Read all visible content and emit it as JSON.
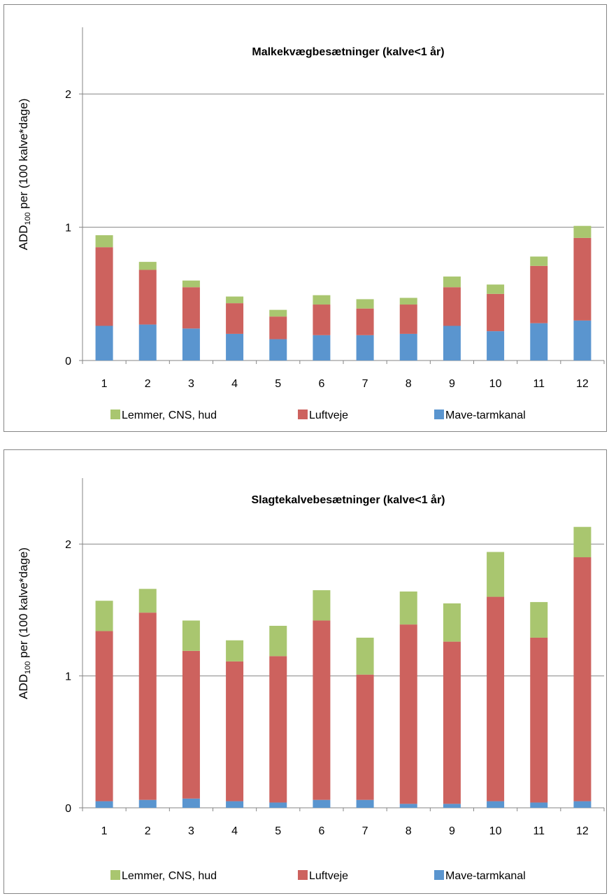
{
  "colors": {
    "limbs": "#a9c66f",
    "respiratory": "#cd625e",
    "digestive": "#5a95cf",
    "axis": "#868686",
    "grid": "#868686"
  },
  "chart_data": [
    {
      "type": "bar",
      "stacked": true,
      "title": "Malkekvægbesætninger (kalve<1 år)",
      "ylabel_main": "ADD",
      "ylabel_sub": "100",
      "ylabel_rest": " per (100 kalve*dage)",
      "xlabel": "",
      "categories": [
        "1",
        "2",
        "3",
        "4",
        "5",
        "6",
        "7",
        "8",
        "9",
        "10",
        "11",
        "12"
      ],
      "ylim": [
        0,
        2.5
      ],
      "yticks": [
        0,
        1,
        2
      ],
      "ytick_labels": [
        "0",
        "1",
        "2"
      ],
      "grid": true,
      "legend_position": "bottom",
      "series": [
        {
          "name": "Mave-tarmkanal",
          "color_key": "digestive",
          "values": [
            0.26,
            0.27,
            0.24,
            0.2,
            0.16,
            0.19,
            0.19,
            0.2,
            0.26,
            0.22,
            0.28,
            0.3
          ]
        },
        {
          "name": "Luftveje",
          "color_key": "respiratory",
          "values": [
            0.59,
            0.41,
            0.31,
            0.23,
            0.17,
            0.23,
            0.2,
            0.22,
            0.29,
            0.28,
            0.43,
            0.62
          ]
        },
        {
          "name": "Lemmer, CNS, hud",
          "color_key": "limbs",
          "values": [
            0.09,
            0.06,
            0.05,
            0.05,
            0.05,
            0.07,
            0.07,
            0.05,
            0.08,
            0.07,
            0.07,
            0.09
          ]
        }
      ],
      "legend_order": [
        "Lemmer, CNS, hud",
        "Luftveje",
        "Mave-tarmkanal"
      ]
    },
    {
      "type": "bar",
      "stacked": true,
      "title": "Slagtekalvebesætninger (kalve<1 år)",
      "ylabel_main": "ADD",
      "ylabel_sub": "100",
      "ylabel_rest": " per (100 kalve*dage)",
      "xlabel": "",
      "categories": [
        "1",
        "2",
        "3",
        "4",
        "5",
        "6",
        "7",
        "8",
        "9",
        "10",
        "11",
        "12"
      ],
      "ylim": [
        0,
        2.5
      ],
      "yticks": [
        0,
        1,
        2
      ],
      "ytick_labels": [
        "0",
        "1",
        "2"
      ],
      "grid": true,
      "legend_position": "bottom",
      "series": [
        {
          "name": "Mave-tarmkanal",
          "color_key": "digestive",
          "values": [
            0.05,
            0.06,
            0.07,
            0.05,
            0.04,
            0.06,
            0.06,
            0.03,
            0.03,
            0.05,
            0.04,
            0.05
          ]
        },
        {
          "name": "Luftveje",
          "color_key": "respiratory",
          "values": [
            1.29,
            1.42,
            1.12,
            1.06,
            1.11,
            1.36,
            0.95,
            1.36,
            1.23,
            1.55,
            1.25,
            1.85
          ]
        },
        {
          "name": "Lemmer, CNS, hud",
          "color_key": "limbs",
          "values": [
            0.23,
            0.18,
            0.23,
            0.16,
            0.23,
            0.23,
            0.28,
            0.25,
            0.29,
            0.34,
            0.27,
            0.23
          ]
        }
      ],
      "legend_order": [
        "Lemmer, CNS, hud",
        "Luftveje",
        "Mave-tarmkanal"
      ]
    }
  ]
}
